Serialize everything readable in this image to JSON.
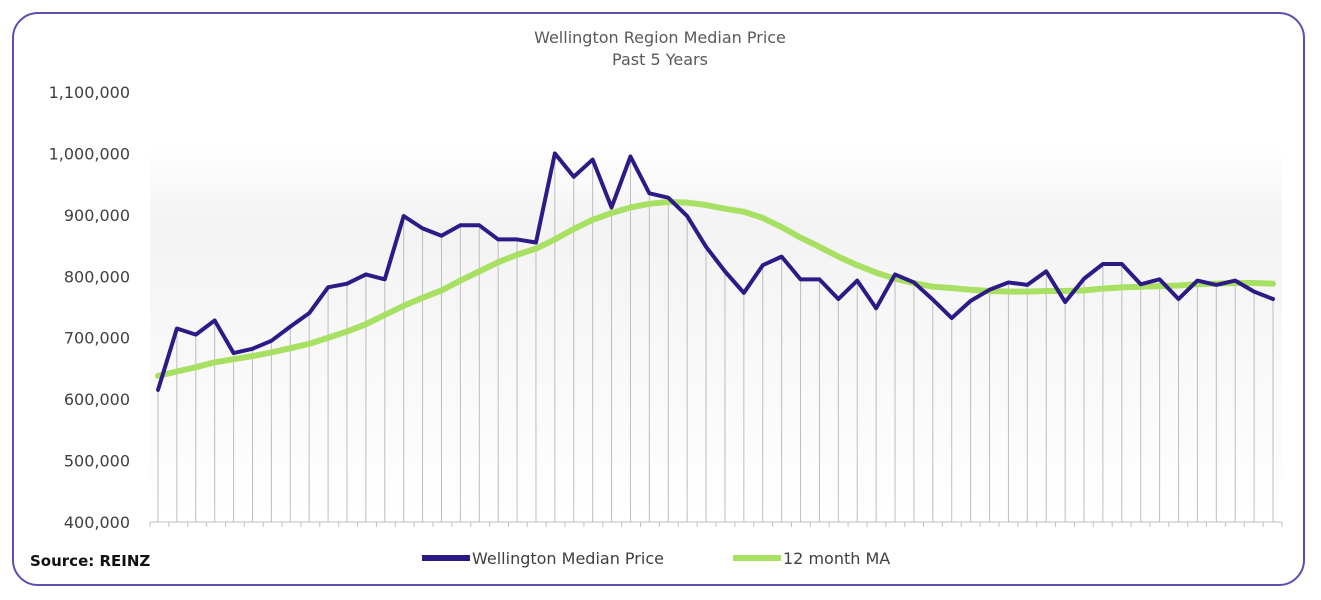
{
  "chart_data": {
    "type": "line",
    "title": "Wellington Region Median Price",
    "subtitle": "Past 5 Years",
    "xlabel": "",
    "ylabel": "",
    "ylim": [
      400000,
      1100000
    ],
    "yticks": [
      400000,
      500000,
      600000,
      700000,
      800000,
      900000,
      1000000,
      1100000
    ],
    "ytick_labels": [
      "400,000",
      "500,000",
      "600,000",
      "700,000",
      "800,000",
      "900,000",
      "1,000,000",
      "1,100,000"
    ],
    "x_count": 60,
    "legend_position": "bottom",
    "series": [
      {
        "name": "Wellington Median Price",
        "color": "#2e1a87",
        "values": [
          615000,
          715000,
          705000,
          728000,
          675000,
          682000,
          695000,
          718000,
          740000,
          782000,
          788000,
          803000,
          795000,
          898000,
          878000,
          866000,
          883000,
          883000,
          860000,
          860000,
          855000,
          1000000,
          962000,
          990000,
          912000,
          995000,
          935000,
          928000,
          898000,
          848000,
          808000,
          773000,
          818000,
          832000,
          795000,
          795000,
          763000,
          793000,
          748000,
          803000,
          790000,
          762000,
          732000,
          760000,
          778000,
          790000,
          786000,
          808000,
          758000,
          796000,
          820000,
          820000,
          787000,
          795000,
          763000,
          793000,
          786000,
          793000,
          775000,
          763000
        ]
      },
      {
        "name": "12 month MA",
        "color": "#a8e063",
        "values": [
          638000,
          645000,
          652000,
          660000,
          665000,
          670000,
          676000,
          683000,
          690000,
          700000,
          710000,
          722000,
          737000,
          752000,
          765000,
          777000,
          793000,
          808000,
          823000,
          835000,
          845000,
          860000,
          877000,
          892000,
          903000,
          912000,
          918000,
          921000,
          920000,
          916000,
          910000,
          905000,
          895000,
          880000,
          863000,
          848000,
          832000,
          818000,
          806000,
          796000,
          789000,
          783000,
          781000,
          778000,
          776000,
          775000,
          775000,
          776000,
          776000,
          777000,
          780000,
          782000,
          783000,
          784000,
          785000,
          787000,
          788000,
          789000,
          789000,
          788000
        ]
      }
    ]
  },
  "source_label": "Source: REINZ"
}
